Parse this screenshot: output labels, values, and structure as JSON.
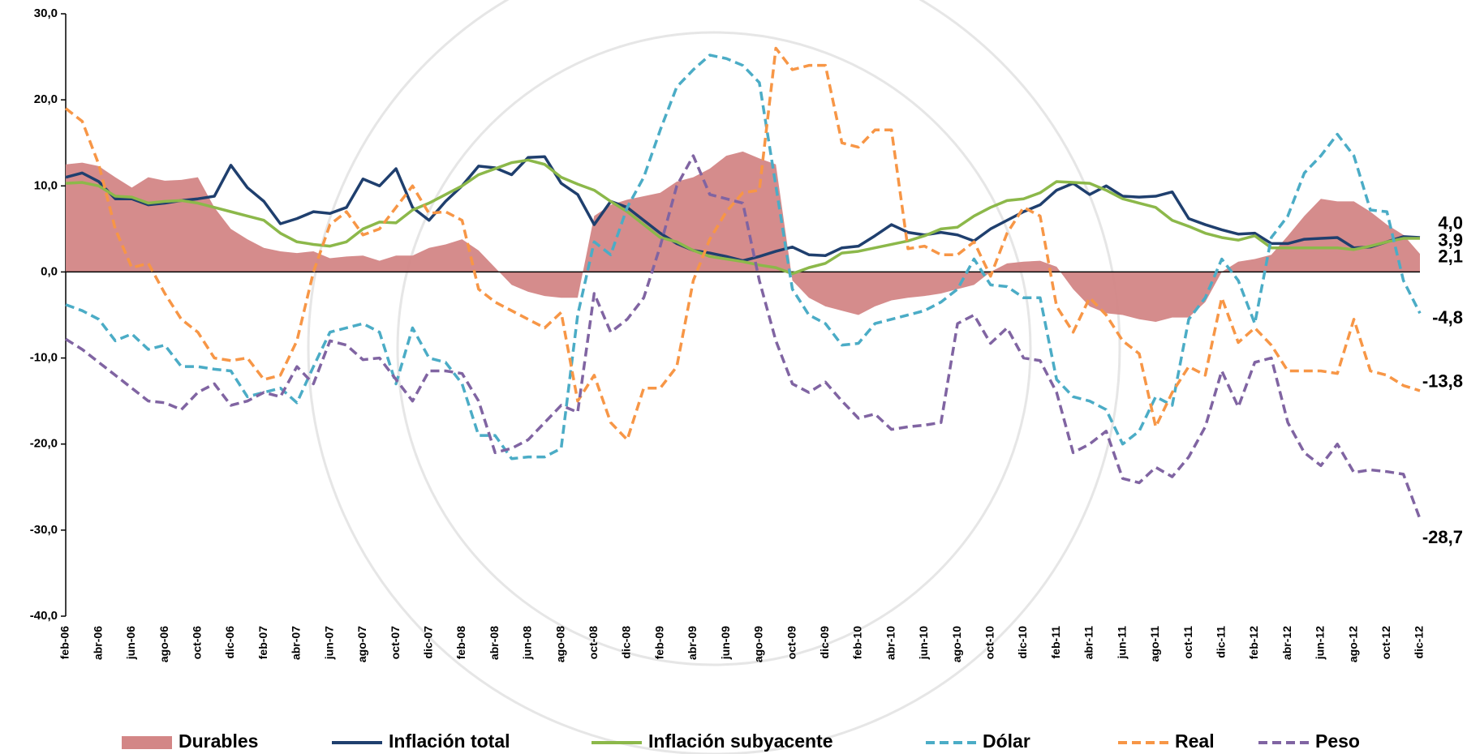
{
  "chart_data": {
    "type": "line",
    "categories": [
      "feb-06",
      null,
      "abr-06",
      null,
      "jun-06",
      null,
      "ago-06",
      null,
      "oct-06",
      null,
      "dic-06",
      null,
      "feb-07",
      null,
      "abr-07",
      null,
      "jun-07",
      null,
      "ago-07",
      null,
      "oct-07",
      null,
      "dic-07",
      null,
      "feb-08",
      null,
      "abr-08",
      null,
      "jun-08",
      null,
      "ago-08",
      null,
      "oct-08",
      null,
      "dic-08",
      null,
      "feb-09",
      null,
      "abr-09",
      null,
      "jun-09",
      null,
      "ago-09",
      null,
      "oct-09",
      null,
      "dic-09",
      null,
      "feb-10",
      null,
      "abr-10",
      null,
      "jun-10",
      null,
      "ago-10",
      null,
      "oct-10",
      null,
      "dic-10",
      null,
      "feb-11",
      null,
      "abr-11",
      null,
      "jun-11",
      null,
      "ago-11",
      null,
      "oct-11",
      null,
      "dic-11",
      null,
      "feb-12",
      null,
      "abr-12",
      null,
      "jun-12",
      null,
      "ago-12",
      null,
      "oct-12",
      null,
      "dic-12"
    ],
    "ylim": [
      -40,
      30
    ],
    "yticks": [
      {
        "value": -40,
        "label": "-40,0"
      },
      {
        "value": -30,
        "label": "-30,0"
      },
      {
        "value": -20,
        "label": "-20,0"
      },
      {
        "value": -10,
        "label": "-10,0"
      },
      {
        "value": 0,
        "label": "0,0"
      },
      {
        "value": 10,
        "label": "10,0"
      },
      {
        "value": 20,
        "label": "20,0"
      },
      {
        "value": 30,
        "label": "30,0"
      }
    ],
    "series": [
      {
        "name": "Durables",
        "type": "area",
        "color": "#d38686",
        "values": [
          12.5,
          12.7,
          12.3,
          11.0,
          9.8,
          11.0,
          10.6,
          10.7,
          11.0,
          7.5,
          5.0,
          3.8,
          2.8,
          2.4,
          2.2,
          2.4,
          1.6,
          1.8,
          1.9,
          1.3,
          1.9,
          1.9,
          2.8,
          3.2,
          3.8,
          2.5,
          0.5,
          -1.5,
          -2.3,
          -2.8,
          -3.0,
          -3.0,
          6.5,
          7.8,
          8.4,
          8.8,
          9.2,
          10.5,
          11.0,
          12.0,
          13.5,
          14.0,
          13.2,
          12.5,
          -1.0,
          -3.0,
          -4.0,
          -4.5,
          -5.0,
          -4.0,
          -3.3,
          -3.0,
          -2.8,
          -2.5,
          -2.0,
          -1.5,
          0.0,
          1.0,
          1.2,
          1.3,
          0.6,
          -2.0,
          -4.0,
          -4.8,
          -5.0,
          -5.5,
          -5.8,
          -5.3,
          -5.3,
          -3.5,
          0.0,
          1.2,
          1.5,
          2.0,
          4.2,
          6.5,
          8.5,
          8.2,
          8.2,
          7.0,
          5.5,
          4.3,
          2.1
        ],
        "value_labels": {
          "82": "2,1"
        }
      },
      {
        "name": "Inflación total",
        "type": "line",
        "color": "#1f3f6e",
        "values": [
          11.0,
          11.5,
          10.5,
          8.5,
          8.5,
          7.8,
          8.0,
          8.3,
          8.5,
          8.8,
          12.4,
          9.8,
          8.2,
          5.6,
          6.2,
          7.0,
          6.8,
          7.5,
          10.8,
          10.0,
          12.0,
          7.5,
          6.0,
          8.2,
          10.0,
          12.3,
          12.1,
          11.3,
          13.3,
          13.4,
          10.3,
          9.0,
          5.5,
          8.2,
          7.5,
          6.0,
          4.5,
          3.3,
          2.5,
          2.2,
          1.8,
          1.3,
          1.8,
          2.4,
          2.9,
          2.0,
          1.9,
          2.8,
          3.0,
          4.2,
          5.5,
          4.6,
          4.3,
          4.6,
          4.3,
          3.6,
          5.0,
          6.0,
          7.0,
          7.8,
          9.5,
          10.3,
          9.0,
          10.0,
          8.8,
          8.7,
          8.8,
          9.3,
          6.2,
          5.5,
          4.9,
          4.4,
          4.5,
          3.3,
          3.3,
          3.8,
          3.9,
          4.0,
          2.8,
          2.9,
          3.5,
          4.1,
          4.0
        ],
        "value_labels": {
          "82": "4,0"
        }
      },
      {
        "name": "Inflación subyacente",
        "type": "line",
        "color": "#8cb84a",
        "values": [
          10.3,
          10.4,
          10.0,
          8.8,
          8.7,
          8.0,
          8.2,
          8.3,
          8.0,
          7.5,
          7.0,
          6.5,
          6.0,
          4.5,
          3.5,
          3.2,
          3.0,
          3.5,
          5.0,
          5.8,
          5.7,
          7.2,
          8.0,
          9.0,
          10.0,
          11.3,
          12.0,
          12.7,
          13.0,
          12.5,
          11.0,
          10.2,
          9.5,
          8.2,
          7.0,
          5.5,
          4.0,
          3.5,
          2.5,
          1.8,
          1.5,
          1.2,
          0.8,
          0.5,
          -0.2,
          0.5,
          1.0,
          2.2,
          2.4,
          2.8,
          3.2,
          3.6,
          4.2,
          5.0,
          5.2,
          6.5,
          7.5,
          8.3,
          8.5,
          9.2,
          10.5,
          10.4,
          10.3,
          9.5,
          8.5,
          8.0,
          7.5,
          6.0,
          5.3,
          4.5,
          4.0,
          3.7,
          4.2,
          2.8,
          2.8,
          2.8,
          2.8,
          2.8,
          2.6,
          3.0,
          3.5,
          3.9,
          3.9
        ],
        "value_labels": {
          "82": "3,9"
        }
      },
      {
        "name": "Dólar",
        "type": "line",
        "dashed": true,
        "color": "#4bacc6",
        "values": [
          -3.8,
          -4.5,
          -5.5,
          -8.0,
          -7.2,
          -9.0,
          -8.5,
          -11.0,
          -11.0,
          -11.3,
          -11.5,
          -14.5,
          -14.0,
          -13.5,
          -15.2,
          -11.0,
          -7.0,
          -6.5,
          -6.0,
          -7.0,
          -13.0,
          -6.5,
          -10.0,
          -10.5,
          -13.0,
          -19.0,
          -19.0,
          -21.7,
          -21.5,
          -21.5,
          -20.5,
          -5.0,
          3.5,
          2.0,
          7.5,
          11.0,
          16.5,
          21.5,
          23.5,
          25.2,
          24.8,
          24.0,
          22.0,
          10.0,
          -2.0,
          -5.0,
          -6.0,
          -8.5,
          -8.3,
          -6.0,
          -5.5,
          -5.0,
          -4.5,
          -3.5,
          -2.0,
          1.5,
          -1.5,
          -1.7,
          -3.0,
          -3.0,
          -12.5,
          -14.5,
          -15.0,
          -16.0,
          -20.0,
          -18.5,
          -14.5,
          -15.5,
          -5.5,
          -3.0,
          1.5,
          -1.0,
          -6.0,
          4.0,
          6.5,
          11.5,
          13.5,
          16.0,
          13.5,
          7.2,
          7.0,
          -1.0,
          -4.8
        ],
        "value_labels": {
          "82": "-4,8"
        }
      },
      {
        "name": "Real",
        "type": "line",
        "dashed": true,
        "color": "#f79646",
        "values": [
          19.0,
          17.5,
          12.5,
          5.0,
          0.5,
          1.0,
          -2.5,
          -5.5,
          -7.0,
          -10.0,
          -10.3,
          -10.0,
          -12.5,
          -12.0,
          -8.0,
          0.0,
          5.5,
          7.0,
          4.3,
          5.0,
          7.5,
          10.0,
          6.8,
          7.0,
          6.0,
          -2.0,
          -3.5,
          -4.5,
          -5.5,
          -6.5,
          -4.7,
          -15.0,
          -12.0,
          -17.5,
          -19.5,
          -13.5,
          -13.5,
          -11.0,
          -1.0,
          3.8,
          7.0,
          9.2,
          9.5,
          26.0,
          23.5,
          24.0,
          24.0,
          15.0,
          14.5,
          16.5,
          16.5,
          2.7,
          3.0,
          2.0,
          2.0,
          3.5,
          -0.5,
          4.5,
          7.5,
          6.5,
          -4.0,
          -7.0,
          -3.0,
          -5.0,
          -8.0,
          -9.5,
          -18.0,
          -14.0,
          -11.0,
          -12.0,
          -3.0,
          -8.2,
          -6.5,
          -8.5,
          -11.5,
          -11.5,
          -11.5,
          -11.8,
          -5.5,
          -11.5,
          -12.0,
          -13.2,
          -13.8
        ],
        "value_labels": {
          "82": "-13,8"
        }
      },
      {
        "name": "Peso",
        "type": "line",
        "dashed": true,
        "color": "#8064a2",
        "values": [
          -7.8,
          -9.0,
          -10.5,
          -12.0,
          -13.5,
          -15.0,
          -15.2,
          -16.0,
          -14.0,
          -13.0,
          -15.5,
          -15.0,
          -14.0,
          -14.5,
          -11.0,
          -13.0,
          -8.0,
          -8.5,
          -10.2,
          -10.0,
          -12.5,
          -15.0,
          -11.5,
          -11.5,
          -11.8,
          -15.0,
          -21.0,
          -20.5,
          -19.5,
          -17.5,
          -15.5,
          -16.3,
          -2.5,
          -7.0,
          -5.5,
          -3.0,
          3.0,
          10.0,
          13.5,
          9.0,
          8.5,
          8.0,
          -1.0,
          -8.0,
          -13.0,
          -14.0,
          -12.8,
          -15.0,
          -17.0,
          -16.5,
          -18.3,
          -18.0,
          -17.8,
          -17.5,
          -6.0,
          -5.0,
          -8.3,
          -6.5,
          -10.0,
          -10.3,
          -14.0,
          -21.0,
          -20.0,
          -18.5,
          -24.0,
          -24.5,
          -22.7,
          -23.8,
          -21.5,
          -18.0,
          -11.5,
          -15.7,
          -10.5,
          -10.0,
          -17.5,
          -21.0,
          -22.5,
          -20.0,
          -23.3,
          -23.0,
          -23.2,
          -23.5,
          -28.7
        ],
        "value_labels": {
          "82": "-28,7"
        }
      }
    ]
  }
}
